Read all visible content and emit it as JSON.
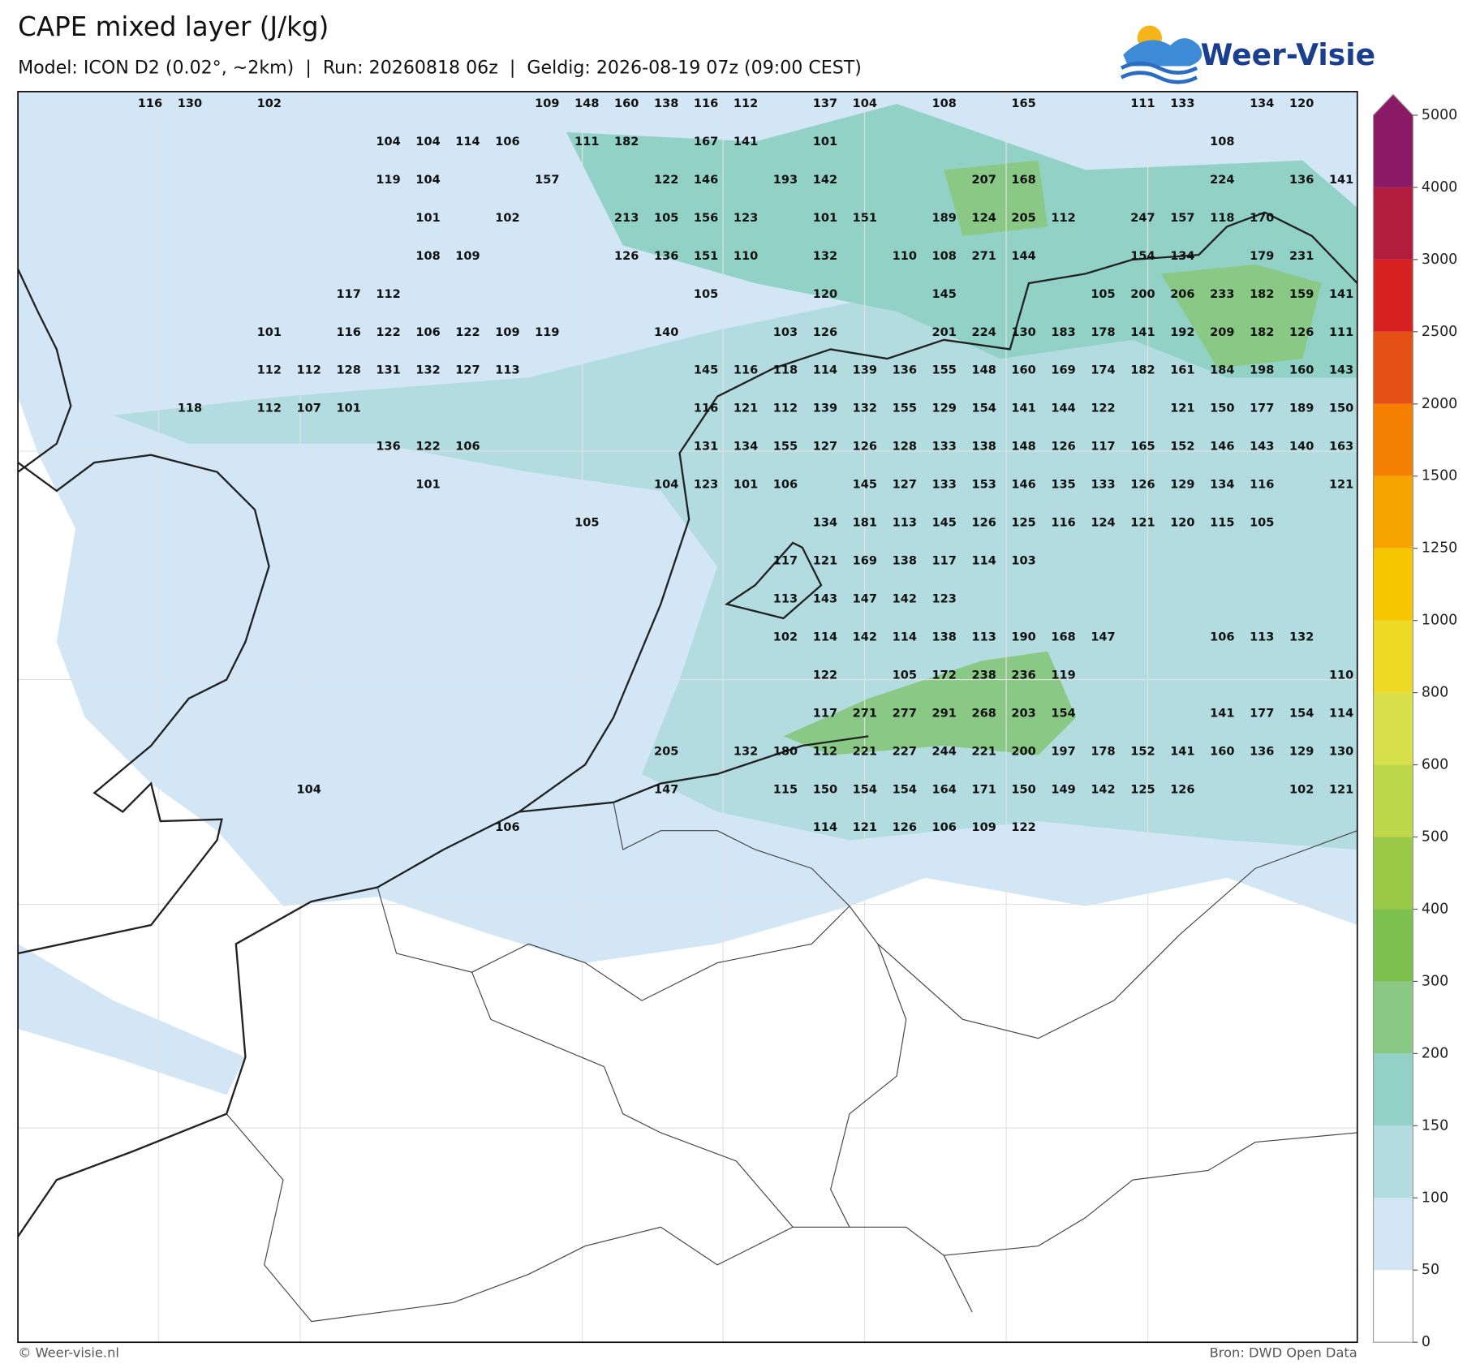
{
  "header": {
    "title": "CAPE mixed layer (J/kg)",
    "subtitle": "Model: ICON D2 (0.02°, ~2km)  |  Run: 20260818 06z  |  Geldig: 2026-08-19 07z (09:00 CEST)",
    "logo": "Weer-Visie"
  },
  "map": {
    "labels": [
      [
        116,
        130,
        null,
        102,
        null,
        null,
        null,
        null,
        null,
        null,
        109,
        148,
        160,
        138,
        116,
        112,
        null,
        137,
        104,
        null,
        108,
        null,
        165,
        null,
        null,
        111,
        133,
        null,
        134,
        120,
        null
      ],
      [
        null,
        null,
        null,
        null,
        null,
        null,
        104,
        104,
        114,
        106,
        null,
        111,
        182,
        null,
        167,
        141,
        null,
        101,
        null,
        null,
        null,
        null,
        null,
        null,
        null,
        null,
        null,
        108,
        null,
        null,
        null
      ],
      [
        null,
        null,
        null,
        null,
        null,
        null,
        119,
        104,
        null,
        null,
        157,
        null,
        null,
        122,
        146,
        null,
        193,
        142,
        null,
        null,
        null,
        207,
        168,
        null,
        null,
        null,
        null,
        224,
        null,
        136,
        141
      ],
      [
        null,
        null,
        null,
        null,
        null,
        null,
        null,
        101,
        null,
        102,
        null,
        null,
        213,
        105,
        156,
        123,
        null,
        101,
        151,
        null,
        189,
        124,
        205,
        112,
        null,
        247,
        157,
        118,
        170,
        null,
        null
      ],
      [
        null,
        null,
        null,
        null,
        null,
        null,
        null,
        108,
        109,
        null,
        null,
        null,
        126,
        136,
        151,
        110,
        null,
        132,
        null,
        110,
        108,
        271,
        144,
        null,
        null,
        154,
        134,
        null,
        179,
        231,
        null
      ],
      [
        null,
        null,
        null,
        null,
        null,
        117,
        112,
        null,
        null,
        null,
        null,
        null,
        null,
        null,
        105,
        null,
        null,
        120,
        null,
        null,
        145,
        null,
        null,
        null,
        105,
        200,
        206,
        233,
        182,
        159,
        141
      ],
      [
        null,
        null,
        null,
        101,
        null,
        116,
        122,
        106,
        122,
        109,
        119,
        null,
        null,
        140,
        null,
        null,
        103,
        126,
        null,
        null,
        201,
        224,
        130,
        183,
        178,
        141,
        192,
        209,
        182,
        126,
        111
      ],
      [
        null,
        null,
        null,
        112,
        112,
        128,
        131,
        132,
        127,
        113,
        null,
        null,
        null,
        null,
        145,
        116,
        118,
        114,
        139,
        136,
        155,
        148,
        160,
        169,
        174,
        182,
        161,
        184,
        198,
        160,
        143
      ],
      [
        null,
        118,
        null,
        112,
        107,
        101,
        null,
        null,
        null,
        null,
        null,
        null,
        null,
        null,
        116,
        121,
        112,
        139,
        132,
        155,
        129,
        154,
        141,
        144,
        122,
        null,
        121,
        150,
        177,
        189,
        150
      ],
      [
        null,
        null,
        null,
        null,
        null,
        null,
        136,
        122,
        106,
        null,
        null,
        null,
        null,
        null,
        131,
        134,
        155,
        127,
        126,
        128,
        133,
        138,
        148,
        126,
        117,
        165,
        152,
        146,
        143,
        140,
        163
      ],
      [
        null,
        null,
        null,
        null,
        null,
        null,
        null,
        101,
        null,
        null,
        null,
        null,
        null,
        104,
        123,
        101,
        106,
        null,
        145,
        127,
        133,
        153,
        146,
        135,
        133,
        126,
        129,
        134,
        116,
        null,
        121
      ],
      [
        null,
        null,
        null,
        null,
        null,
        null,
        null,
        null,
        null,
        null,
        null,
        105,
        null,
        null,
        null,
        null,
        null,
        134,
        181,
        113,
        145,
        126,
        125,
        116,
        124,
        121,
        120,
        115,
        105,
        null,
        null
      ],
      [
        null,
        null,
        null,
        null,
        null,
        null,
        null,
        null,
        null,
        null,
        null,
        null,
        null,
        null,
        null,
        null,
        117,
        121,
        169,
        138,
        117,
        114,
        103,
        null,
        null,
        null,
        null,
        null,
        null,
        null,
        null
      ],
      [
        null,
        null,
        null,
        null,
        null,
        null,
        null,
        null,
        null,
        null,
        null,
        null,
        null,
        null,
        null,
        null,
        113,
        143,
        147,
        142,
        123,
        null,
        null,
        null,
        null,
        null,
        null,
        null,
        null,
        null,
        null
      ],
      [
        null,
        null,
        null,
        null,
        null,
        null,
        null,
        null,
        null,
        null,
        null,
        null,
        null,
        null,
        null,
        null,
        102,
        114,
        142,
        114,
        138,
        113,
        190,
        168,
        147,
        null,
        null,
        106,
        113,
        132,
        null
      ],
      [
        null,
        null,
        null,
        null,
        null,
        null,
        null,
        null,
        null,
        null,
        null,
        null,
        null,
        null,
        null,
        null,
        null,
        122,
        null,
        105,
        172,
        238,
        236,
        119,
        null,
        null,
        null,
        null,
        null,
        null,
        110
      ],
      [
        null,
        null,
        null,
        null,
        null,
        null,
        null,
        null,
        null,
        null,
        null,
        null,
        null,
        null,
        null,
        null,
        null,
        117,
        271,
        277,
        291,
        268,
        203,
        154,
        null,
        null,
        null,
        141,
        177,
        154,
        114
      ],
      [
        null,
        null,
        null,
        null,
        null,
        null,
        null,
        null,
        null,
        null,
        null,
        null,
        null,
        205,
        null,
        132,
        180,
        112,
        221,
        227,
        244,
        221,
        200,
        197,
        178,
        152,
        141,
        160,
        136,
        129,
        130
      ],
      [
        null,
        null,
        null,
        null,
        104,
        null,
        null,
        null,
        null,
        null,
        null,
        null,
        null,
        147,
        null,
        null,
        115,
        150,
        154,
        154,
        164,
        171,
        150,
        149,
        142,
        125,
        126,
        null,
        null,
        102,
        121
      ],
      [
        null,
        null,
        null,
        null,
        null,
        null,
        null,
        null,
        null,
        106,
        null,
        null,
        null,
        null,
        null,
        null,
        null,
        114,
        121,
        126,
        106,
        109,
        122,
        null,
        null,
        null,
        null,
        null,
        null,
        null,
        null
      ]
    ]
  },
  "colorbar": {
    "ticks": [
      0,
      50,
      100,
      150,
      200,
      300,
      400,
      500,
      600,
      800,
      1000,
      1250,
      1500,
      2000,
      2500,
      3000,
      4000,
      5000
    ],
    "colors": [
      "#ffffff",
      "#d2e6f5",
      "#b2dcdf",
      "#92d1c5",
      "#89c985",
      "#7cc04e",
      "#9ac847",
      "#bfd84a",
      "#d8e04a",
      "#eed925",
      "#f6c700",
      "#f7a400",
      "#f57f00",
      "#e55014",
      "#d72121",
      "#b21d3d",
      "#8b1a66"
    ],
    "extend_color": "#8b1a66"
  },
  "footer": {
    "copyright": "© Weer-visie.nl",
    "source": "Bron: DWD Open Data"
  }
}
